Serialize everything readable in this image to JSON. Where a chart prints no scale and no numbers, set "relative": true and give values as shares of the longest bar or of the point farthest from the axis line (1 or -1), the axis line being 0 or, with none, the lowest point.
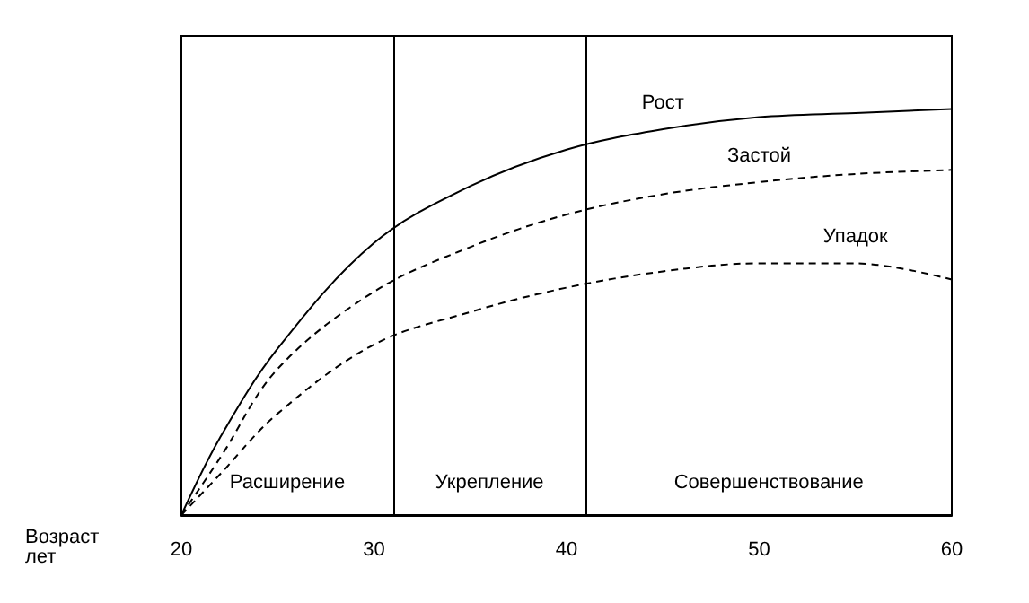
{
  "chart_data": {
    "type": "line",
    "relative": true,
    "xlabel": "Возраст лет",
    "xlim": [
      20,
      60
    ],
    "xticks": [
      20,
      30,
      40,
      50,
      60
    ],
    "x": [
      20,
      22,
      25,
      30,
      35,
      40,
      45,
      50,
      55,
      60
    ],
    "series": [
      {
        "name": "Рост",
        "color": "#000000",
        "line_style": "solid",
        "values": [
          0,
          0.19,
          0.41,
          0.67,
          0.81,
          0.9,
          0.95,
          0.98,
          0.99,
          1
        ]
      },
      {
        "name": "Застой",
        "color": "#000000",
        "line_style": "dashed",
        "values": [
          0,
          0.14,
          0.36,
          0.55,
          0.66,
          0.74,
          0.79,
          0.82,
          0.84,
          0.85
        ]
      },
      {
        "name": "Упадок",
        "color": "#000000",
        "line_style": "dashed",
        "values": [
          0,
          0.1,
          0.25,
          0.42,
          0.5,
          0.56,
          0.6,
          0.62,
          0.62,
          0.58
        ]
      }
    ],
    "annotations": [
      "Расширение",
      "Укрепление",
      "Совершенствование"
    ],
    "ref_lines": [
      {
        "axis": "x",
        "value": 31
      },
      {
        "axis": "x",
        "value": 41
      }
    ],
    "marker": "none",
    "grid": false,
    "legend": false
  }
}
